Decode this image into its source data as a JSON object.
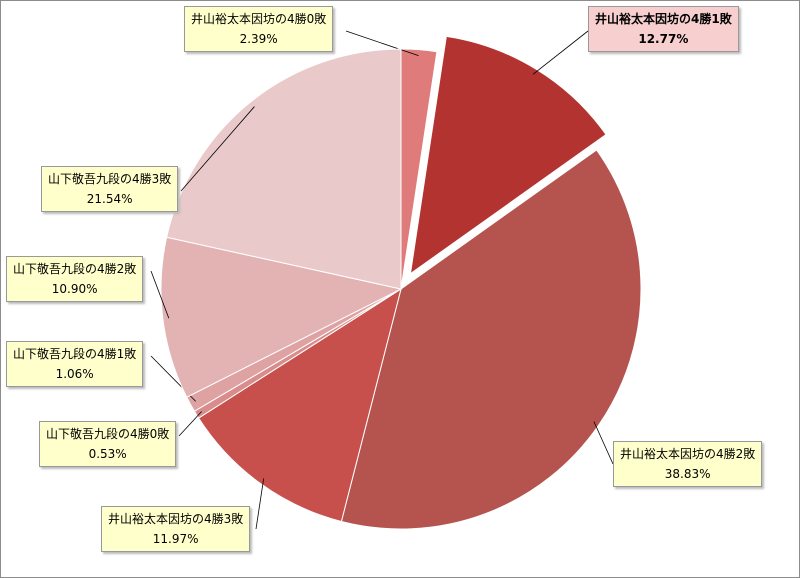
{
  "chart_data": {
    "type": "pie",
    "categories": [
      "井山裕太本因坊の4勝0敗",
      "井山裕太本因坊の4勝1敗",
      "井山裕太本因坊の4勝2敗",
      "井山裕太本因坊の4勝3敗",
      "山下敬吾九段の4勝0敗",
      "山下敬吾九段の4勝1敗",
      "山下敬吾九段の4勝2敗",
      "山下敬吾九段の4勝3敗"
    ],
    "values": [
      2.39,
      12.77,
      38.83,
      11.97,
      0.53,
      1.06,
      10.9,
      21.54
    ],
    "value_labels": [
      "2.39%",
      "12.77%",
      "38.83%",
      "11.97%",
      "0.53%",
      "1.06%",
      "10.90%",
      "21.54%"
    ],
    "colors": [
      "#e07b7b",
      "#b2332f",
      "#b5534f",
      "#c7504c",
      "#d98c8c",
      "#dea2a2",
      "#e3b2b2",
      "#e9c9c9"
    ]
  }
}
